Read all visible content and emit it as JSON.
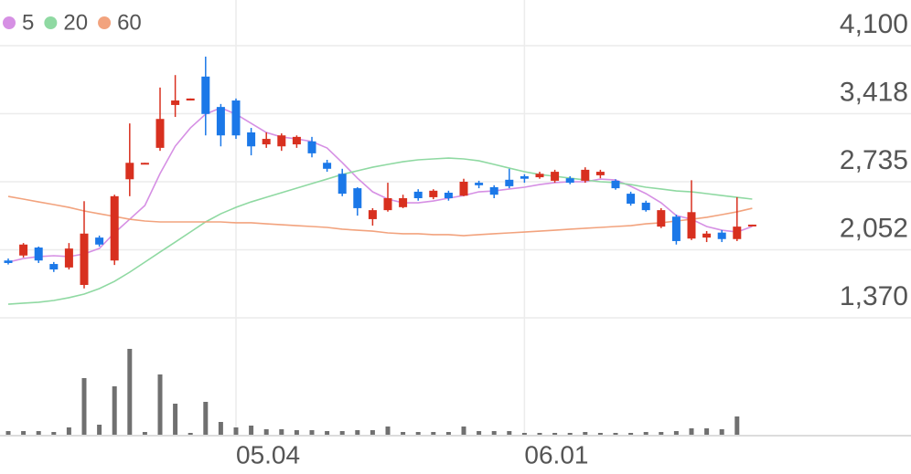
{
  "chart_data": {
    "type": "candlestick",
    "categories": [
      null,
      null,
      null,
      null,
      null,
      null,
      null,
      null,
      null,
      null,
      null,
      null,
      null,
      null,
      null,
      "05.04",
      null,
      null,
      null,
      null,
      null,
      null,
      null,
      null,
      null,
      null,
      null,
      null,
      null,
      null,
      null,
      null,
      null,
      null,
      "06.01",
      null,
      null,
      null,
      null,
      null,
      null,
      null,
      null,
      null,
      null,
      null,
      null,
      null,
      null,
      null
    ],
    "open": [
      1945,
      1995,
      2075,
      1910,
      1875,
      1700,
      2175,
      1945,
      2760,
      2910,
      3075,
      3505,
      3550,
      3790,
      3485,
      3550,
      3230,
      3110,
      3090,
      3110,
      3140,
      2925,
      2815,
      2670,
      2360,
      2450,
      2480,
      2635,
      2580,
      2625,
      2595,
      2725,
      2680,
      2755,
      2790,
      2780,
      2745,
      2770,
      2745,
      2800,
      2745,
      2615,
      2525,
      2285,
      2385,
      2165,
      2175,
      2225,
      2160,
      2295
    ],
    "high": [
      1965,
      2120,
      2085,
      1930,
      2120,
      2540,
      2195,
      2605,
      3320,
      2925,
      3680,
      3805,
      3570,
      3990,
      3515,
      3570,
      3275,
      3230,
      3220,
      3200,
      3185,
      2955,
      2865,
      2680,
      2470,
      2725,
      2605,
      2660,
      2660,
      2645,
      2765,
      2745,
      2700,
      2865,
      2810,
      2835,
      2855,
      2790,
      2880,
      2855,
      2760,
      2635,
      2545,
      2470,
      2405,
      2750,
      2240,
      2250,
      2580,
      2305
    ],
    "low": [
      1905,
      1975,
      1920,
      1830,
      1855,
      1665,
      2085,
      1900,
      2590,
      2910,
      3045,
      3385,
      3550,
      3200,
      3090,
      3165,
      3000,
      3075,
      3045,
      3075,
      2980,
      2835,
      2590,
      2395,
      2295,
      2435,
      2470,
      2545,
      2560,
      2545,
      2590,
      2670,
      2570,
      2670,
      2725,
      2765,
      2725,
      2710,
      2725,
      2770,
      2655,
      2495,
      2435,
      2270,
      2105,
      2150,
      2130,
      2130,
      2140,
      2295
    ],
    "close": [
      1920,
      2105,
      1945,
      1855,
      2065,
      2215,
      2105,
      2590,
      2925,
      2925,
      3365,
      3550,
      3570,
      3415,
      3200,
      3200,
      3090,
      3165,
      3200,
      3185,
      3020,
      2865,
      2615,
      2470,
      2450,
      2570,
      2570,
      2570,
      2645,
      2570,
      2735,
      2700,
      2605,
      2690,
      2765,
      2815,
      2835,
      2725,
      2855,
      2835,
      2670,
      2515,
      2450,
      2450,
      2140,
      2430,
      2215,
      2160,
      2285,
      2305
    ],
    "up_color": "#d8301f",
    "down_color": "#1b78e8",
    "series": [
      {
        "name": "5",
        "color": "#d690e4",
        "values": [
          1929,
          1965,
          1984,
          1993,
          1984,
          2011,
          2066,
          2222,
          2359,
          2497,
          2817,
          3092,
          3275,
          3413,
          3477,
          3413,
          3321,
          3229,
          3184,
          3165,
          3138,
          3074,
          2927,
          2771,
          2634,
          2561,
          2524,
          2524,
          2542,
          2570,
          2597,
          2634,
          2643,
          2662,
          2680,
          2707,
          2726,
          2735,
          2735,
          2762,
          2753,
          2689,
          2616,
          2524,
          2396,
          2359,
          2286,
          2249,
          2231,
          2286
        ]
      },
      {
        "name": "20",
        "color": "#8fd9a2",
        "values": [
          1507,
          1517,
          1526,
          1544,
          1572,
          1608,
          1663,
          1736,
          1828,
          1929,
          2030,
          2130,
          2231,
          2332,
          2414,
          2478,
          2533,
          2579,
          2625,
          2671,
          2717,
          2762,
          2808,
          2845,
          2881,
          2909,
          2936,
          2955,
          2964,
          2973,
          2964,
          2945,
          2909,
          2872,
          2836,
          2808,
          2790,
          2771,
          2753,
          2735,
          2726,
          2707,
          2680,
          2662,
          2643,
          2634,
          2616,
          2597,
          2579,
          2561
        ]
      },
      {
        "name": "60",
        "color": "#f2a37e",
        "values": [
          2588,
          2561,
          2533,
          2506,
          2478,
          2442,
          2414,
          2387,
          2359,
          2341,
          2332,
          2332,
          2332,
          2332,
          2332,
          2323,
          2323,
          2313,
          2304,
          2295,
          2286,
          2277,
          2259,
          2249,
          2240,
          2222,
          2213,
          2213,
          2204,
          2204,
          2194,
          2204,
          2213,
          2222,
          2231,
          2240,
          2249,
          2259,
          2268,
          2277,
          2286,
          2295,
          2313,
          2323,
          2341,
          2359,
          2378,
          2405,
          2433,
          2469
        ]
      }
    ],
    "volume": [
      4,
      4,
      4,
      3,
      8,
      62,
      11,
      53,
      94,
      3,
      66,
      34,
      2,
      36,
      14,
      8,
      10,
      6,
      6,
      5,
      5,
      4,
      4,
      5,
      5,
      9,
      3,
      3,
      3,
      3,
      9,
      4,
      4,
      4,
      2,
      2,
      2,
      2,
      3,
      2,
      2,
      2,
      3,
      3,
      4,
      7,
      7,
      6,
      20,
      0
    ],
    "volume_color": "#707070",
    "volume_ylim": [
      0,
      100
    ],
    "ylim": [
      1370,
      4100
    ],
    "yticks": [
      {
        "value": 1370,
        "label": "1,370"
      },
      {
        "value": 2052,
        "label": "2,052"
      },
      {
        "value": 2735,
        "label": "2,735"
      },
      {
        "value": 3418,
        "label": "3,418"
      },
      {
        "value": 4100,
        "label": "4,100"
      }
    ],
    "grid": true
  }
}
